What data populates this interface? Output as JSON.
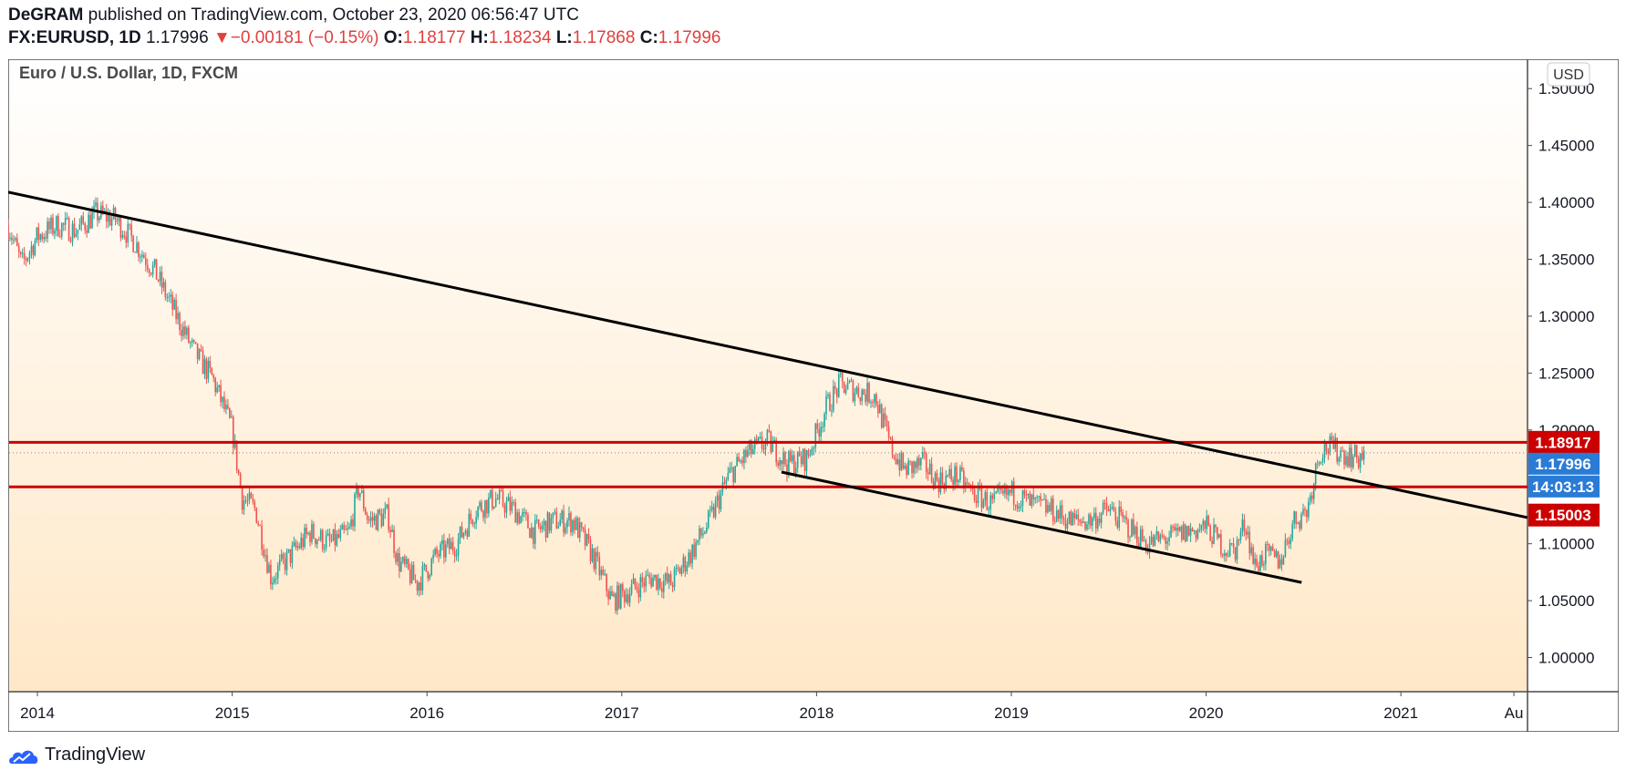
{
  "header": {
    "publisher": "DeGRAM",
    "published_text": "published on TradingView.com, October 23, 2020 06:56:47 UTC",
    "symbol": "FX:EURUSD, 1D",
    "last": "1.17996",
    "change_arrow": "▼",
    "change": "−0.00181 (−0.15%)",
    "o_label": "O:",
    "o": "1.18177",
    "h_label": "H:",
    "h": "1.18234",
    "l_label": "L:",
    "l": "1.17868",
    "c_label": "C:",
    "c": "1.17996"
  },
  "footer": {
    "brand": "TradingView",
    "brand_icon": "tradingview-cloud-icon"
  },
  "colors": {
    "up": "#26a69a",
    "down": "#ef5350",
    "level": "#cc0000",
    "price_tag": "#2a7bd6",
    "trend": "#000000",
    "bg_top": "#ffffff",
    "bg_bottom": "#ffe8c8"
  },
  "chart_data": {
    "type": "candlestick",
    "title": "Euro / U.S. Dollar, 1D, FXCM",
    "currency_button": "USD",
    "ylim": [
      0.97,
      1.525
    ],
    "xlim": [
      2013.85,
      2021.65
    ],
    "y_ticks": [
      "1.00000",
      "1.05000",
      "1.10000",
      "1.15000",
      "1.20000",
      "1.25000",
      "1.30000",
      "1.35000",
      "1.40000",
      "1.45000",
      "1.50000"
    ],
    "x_ticks": [
      {
        "label": "2014",
        "x": 2014.0
      },
      {
        "label": "2015",
        "x": 2015.0
      },
      {
        "label": "2016",
        "x": 2016.0
      },
      {
        "label": "2017",
        "x": 2017.0
      },
      {
        "label": "2018",
        "x": 2018.0
      },
      {
        "label": "2019",
        "x": 2019.0
      },
      {
        "label": "2020",
        "x": 2020.0
      },
      {
        "label": "2021",
        "x": 2021.0
      },
      {
        "label": "Au",
        "x": 2021.58
      }
    ],
    "price_path": [
      [
        2013.85,
        1.38
      ],
      [
        2013.92,
        1.345
      ],
      [
        2014.0,
        1.37
      ],
      [
        2014.1,
        1.38
      ],
      [
        2014.2,
        1.375
      ],
      [
        2014.3,
        1.39
      ],
      [
        2014.4,
        1.385
      ],
      [
        2014.5,
        1.365
      ],
      [
        2014.6,
        1.34
      ],
      [
        2014.7,
        1.305
      ],
      [
        2014.8,
        1.27
      ],
      [
        2014.9,
        1.245
      ],
      [
        2015.0,
        1.2
      ],
      [
        2015.05,
        1.14
      ],
      [
        2015.12,
        1.13
      ],
      [
        2015.2,
        1.07
      ],
      [
        2015.3,
        1.09
      ],
      [
        2015.4,
        1.11
      ],
      [
        2015.5,
        1.1
      ],
      [
        2015.6,
        1.11
      ],
      [
        2015.65,
        1.15
      ],
      [
        2015.7,
        1.12
      ],
      [
        2015.8,
        1.125
      ],
      [
        2015.85,
        1.085
      ],
      [
        2015.95,
        1.065
      ],
      [
        2016.05,
        1.09
      ],
      [
        2016.15,
        1.1
      ],
      [
        2016.25,
        1.13
      ],
      [
        2016.35,
        1.14
      ],
      [
        2016.45,
        1.13
      ],
      [
        2016.55,
        1.11
      ],
      [
        2016.65,
        1.12
      ],
      [
        2016.75,
        1.12
      ],
      [
        2016.85,
        1.09
      ],
      [
        2016.95,
        1.05
      ],
      [
        2017.05,
        1.06
      ],
      [
        2017.15,
        1.07
      ],
      [
        2017.25,
        1.065
      ],
      [
        2017.35,
        1.09
      ],
      [
        2017.45,
        1.12
      ],
      [
        2017.55,
        1.16
      ],
      [
        2017.65,
        1.18
      ],
      [
        2017.75,
        1.19
      ],
      [
        2017.85,
        1.17
      ],
      [
        2017.95,
        1.175
      ],
      [
        2018.05,
        1.22
      ],
      [
        2018.12,
        1.24
      ],
      [
        2018.2,
        1.235
      ],
      [
        2018.3,
        1.23
      ],
      [
        2018.38,
        1.185
      ],
      [
        2018.45,
        1.165
      ],
      [
        2018.55,
        1.17
      ],
      [
        2018.62,
        1.155
      ],
      [
        2018.72,
        1.16
      ],
      [
        2018.8,
        1.145
      ],
      [
        2018.9,
        1.135
      ],
      [
        2019.0,
        1.145
      ],
      [
        2019.1,
        1.135
      ],
      [
        2019.2,
        1.13
      ],
      [
        2019.3,
        1.12
      ],
      [
        2019.4,
        1.12
      ],
      [
        2019.5,
        1.13
      ],
      [
        2019.6,
        1.115
      ],
      [
        2019.7,
        1.1
      ],
      [
        2019.8,
        1.105
      ],
      [
        2019.9,
        1.11
      ],
      [
        2020.0,
        1.115
      ],
      [
        2020.1,
        1.095
      ],
      [
        2020.15,
        1.095
      ],
      [
        2020.2,
        1.12
      ],
      [
        2020.25,
        1.08
      ],
      [
        2020.3,
        1.09
      ],
      [
        2020.38,
        1.085
      ],
      [
        2020.45,
        1.12
      ],
      [
        2020.52,
        1.13
      ],
      [
        2020.58,
        1.18
      ],
      [
        2020.62,
        1.185
      ],
      [
        2020.7,
        1.18
      ],
      [
        2020.78,
        1.175
      ],
      [
        2020.81,
        1.18
      ]
    ],
    "horizontal_levels": [
      {
        "name": "resistance",
        "value": 1.18917,
        "label": "1.18917"
      },
      {
        "name": "support",
        "value": 1.15003,
        "label": "1.15003"
      }
    ],
    "last_price": {
      "value": 1.17996,
      "label": "1.17996",
      "countdown": "14:03:13"
    },
    "trend_lines": [
      {
        "name": "upper-trendline",
        "x1": 2013.85,
        "y1": 1.409,
        "x2": 2021.65,
        "y2": 1.123
      },
      {
        "name": "lower-trendline",
        "x1": 2017.82,
        "y1": 1.163,
        "x2": 2020.49,
        "y2": 1.066
      }
    ]
  }
}
